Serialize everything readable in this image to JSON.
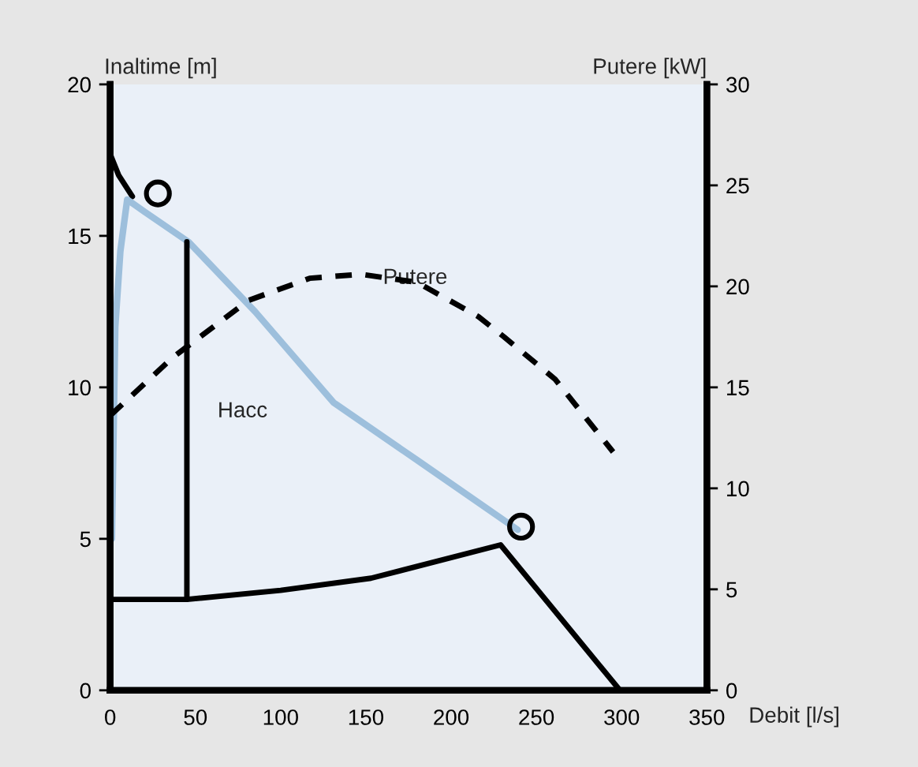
{
  "chart_data": {
    "type": "line",
    "xlabel": "Debit [l/s]",
    "ylabel": "Inaltime [m]",
    "y2label": "Putere [kW]",
    "xlim": [
      0,
      350
    ],
    "xticks": [
      0,
      50,
      100,
      150,
      200,
      250,
      300,
      350
    ],
    "ylim": [
      0,
      20
    ],
    "yticks": [
      0,
      5,
      10,
      15,
      20
    ],
    "y2lim": [
      0,
      30
    ],
    "y2ticks": [
      0,
      5,
      10,
      15,
      20,
      25,
      30
    ],
    "grid": false,
    "legend": false,
    "series": [
      {
        "color": "#000000",
        "line_style": "solid",
        "x": [
          0,
          5,
          13
        ],
        "values": [
          17.7,
          17.0,
          16.3
        ]
      },
      {
        "color": "#9dbfdc",
        "line_style": "solid",
        "x": [
          1,
          3,
          6,
          10,
          20,
          46,
          85,
          131,
          180,
          239
        ],
        "values": [
          5,
          12,
          14.5,
          16.2,
          15.8,
          14.8,
          12.5,
          9.5,
          7.6,
          5.3
        ]
      },
      {
        "color": "#000000",
        "line_style": "solid",
        "x": [
          0,
          45,
          100,
          153,
          229,
          299
        ],
        "values": [
          3.0,
          3.0,
          3.3,
          3.7,
          4.8,
          0
        ]
      },
      {
        "color": "#000000",
        "line_style": "dashed",
        "axis": "y2",
        "x": [
          0,
          37,
          81,
          117,
          147,
          180,
          216,
          231,
          261,
          295
        ],
        "values": [
          13.6,
          16.5,
          19.3,
          20.4,
          20.6,
          20.2,
          18.5,
          17.5,
          15.4,
          11.8
        ]
      },
      {
        "color": "#000000",
        "line_style": "solid",
        "x": [
          45,
          45
        ],
        "values": [
          3.0,
          14.8
        ]
      },
      {
        "type": "scatter",
        "color": "#000000",
        "marker": "circle",
        "x": [
          28,
          241
        ],
        "values": [
          16.4,
          5.4
        ]
      }
    ],
    "annotations": [
      "Hacc",
      {
        "text": "Putere",
        "x": 160,
        "y": 13.6
      }
    ]
  }
}
